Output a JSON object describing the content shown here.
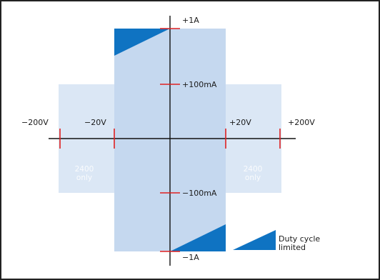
{
  "colors": {
    "frame": "#222222",
    "quadrant_light": "#dbe7f5",
    "quadrant_main": "#c5d8ef",
    "duty_triangle": "#0f73c2",
    "tick": "#e02020",
    "axis": "#111111"
  },
  "axis_labels": {
    "v_neg_200": "−200V",
    "v_neg_20": "−20V",
    "v_pos_20": "+20V",
    "v_pos_200": "+200V",
    "i_pos_1a": "+1A",
    "i_pos_100ma": "+100mA",
    "i_neg_100ma": "−100mA",
    "i_neg_1a": "−1A"
  },
  "regions": {
    "left_only": {
      "line1": "2400",
      "line2": "only"
    },
    "right_only": {
      "line1": "2400",
      "line2": "only"
    }
  },
  "legend": {
    "line1": "Duty cycle",
    "line2": "limited"
  }
}
